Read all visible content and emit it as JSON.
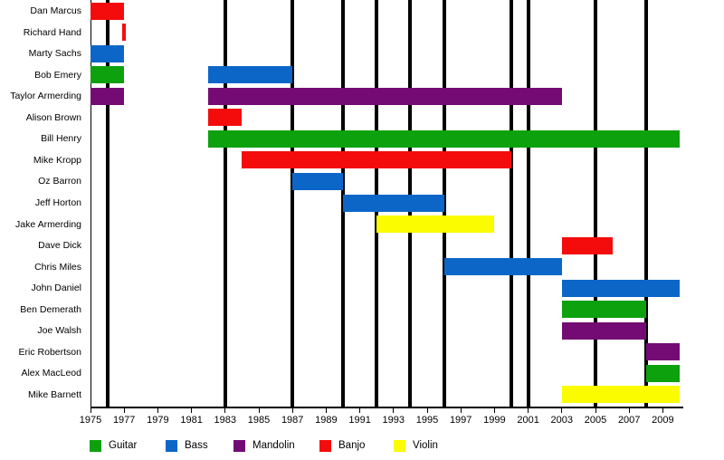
{
  "chart_data": {
    "type": "bar",
    "subtype": "gantt-band-member-timeline",
    "title": "",
    "xlabel": "",
    "ylabel": "",
    "x_axis": {
      "min": 1975,
      "max": 2010,
      "tick_years": [
        1975,
        1977,
        1979,
        1981,
        1983,
        1985,
        1987,
        1989,
        1991,
        1993,
        1995,
        1997,
        1999,
        2001,
        2003,
        2005,
        2007,
        2009
      ],
      "tick_labels": [
        "1975",
        "1977",
        "1979",
        "1981",
        "1983",
        "1985",
        "1987",
        "1989",
        "1991",
        "1993",
        "1995",
        "1997",
        "1999",
        "2001",
        "2003",
        "2005",
        "2007",
        "2009"
      ]
    },
    "event_line_years": [
      1976,
      1983,
      1987,
      1990,
      1992,
      1994,
      1996,
      2000,
      2001,
      2005,
      2008
    ],
    "members": [
      {
        "name": "Dan Marcus",
        "periods": [
          {
            "instrument": "Banjo",
            "start": 1975,
            "end": 1977
          }
        ]
      },
      {
        "name": "Richard Hand",
        "periods": [
          {
            "instrument": "Banjo",
            "start": 1976.9,
            "end": 1977.1
          }
        ]
      },
      {
        "name": "Marty Sachs",
        "periods": [
          {
            "instrument": "Bass",
            "start": 1975,
            "end": 1977
          }
        ]
      },
      {
        "name": "Bob Emery",
        "periods": [
          {
            "instrument": "Guitar",
            "start": 1975,
            "end": 1977
          },
          {
            "instrument": "Bass",
            "start": 1982,
            "end": 1987
          }
        ]
      },
      {
        "name": "Taylor Armerding",
        "periods": [
          {
            "instrument": "Mandolin",
            "start": 1975,
            "end": 1977
          },
          {
            "instrument": "Mandolin",
            "start": 1982,
            "end": 2003
          }
        ]
      },
      {
        "name": "Alison Brown",
        "periods": [
          {
            "instrument": "Banjo",
            "start": 1982,
            "end": 1984
          }
        ]
      },
      {
        "name": "Bill Henry",
        "periods": [
          {
            "instrument": "Guitar",
            "start": 1982,
            "end": 2010
          }
        ]
      },
      {
        "name": "Mike Kropp",
        "periods": [
          {
            "instrument": "Banjo",
            "start": 1984,
            "end": 2000
          }
        ]
      },
      {
        "name": "Oz Barron",
        "periods": [
          {
            "instrument": "Bass",
            "start": 1987,
            "end": 1990
          }
        ]
      },
      {
        "name": "Jeff Horton",
        "periods": [
          {
            "instrument": "Bass",
            "start": 1990,
            "end": 1996
          }
        ]
      },
      {
        "name": "Jake Armerding",
        "periods": [
          {
            "instrument": "Violin",
            "start": 1992,
            "end": 1999
          }
        ]
      },
      {
        "name": "Dave Dick",
        "periods": [
          {
            "instrument": "Banjo",
            "start": 2003,
            "end": 2006
          }
        ]
      },
      {
        "name": "Chris Miles",
        "periods": [
          {
            "instrument": "Bass",
            "start": 1996,
            "end": 2003
          }
        ]
      },
      {
        "name": "John Daniel",
        "periods": [
          {
            "instrument": "Bass",
            "start": 2003,
            "end": 2010
          }
        ]
      },
      {
        "name": "Ben Demerath",
        "periods": [
          {
            "instrument": "Guitar",
            "start": 2003,
            "end": 2008
          }
        ]
      },
      {
        "name": "Joe Walsh",
        "periods": [
          {
            "instrument": "Mandolin",
            "start": 2003,
            "end": 2008
          }
        ]
      },
      {
        "name": "Eric Robertson",
        "periods": [
          {
            "instrument": "Mandolin",
            "start": 2008,
            "end": 2010
          }
        ]
      },
      {
        "name": "Alex MacLeod",
        "periods": [
          {
            "instrument": "Guitar",
            "start": 2008,
            "end": 2010
          }
        ]
      },
      {
        "name": "Mike Barnett",
        "periods": [
          {
            "instrument": "Violin",
            "start": 2003,
            "end": 2010
          }
        ]
      }
    ],
    "legend": [
      {
        "label": "Guitar",
        "color": "#0da10d"
      },
      {
        "label": "Bass",
        "color": "#0c66c8"
      },
      {
        "label": "Mandolin",
        "color": "#740b74"
      },
      {
        "label": "Banjo",
        "color": "#f40c0c"
      },
      {
        "label": "Violin",
        "color": "#fcfc00"
      }
    ],
    "colors": {
      "Guitar": "#0da10d",
      "Bass": "#0c66c8",
      "Mandolin": "#740b74",
      "Banjo": "#f40c0c",
      "Violin": "#fcfc00",
      "axis": "#000000",
      "event_line": "#000000",
      "background": "#ffffff"
    },
    "legend_position": "bottom",
    "grid": false
  }
}
